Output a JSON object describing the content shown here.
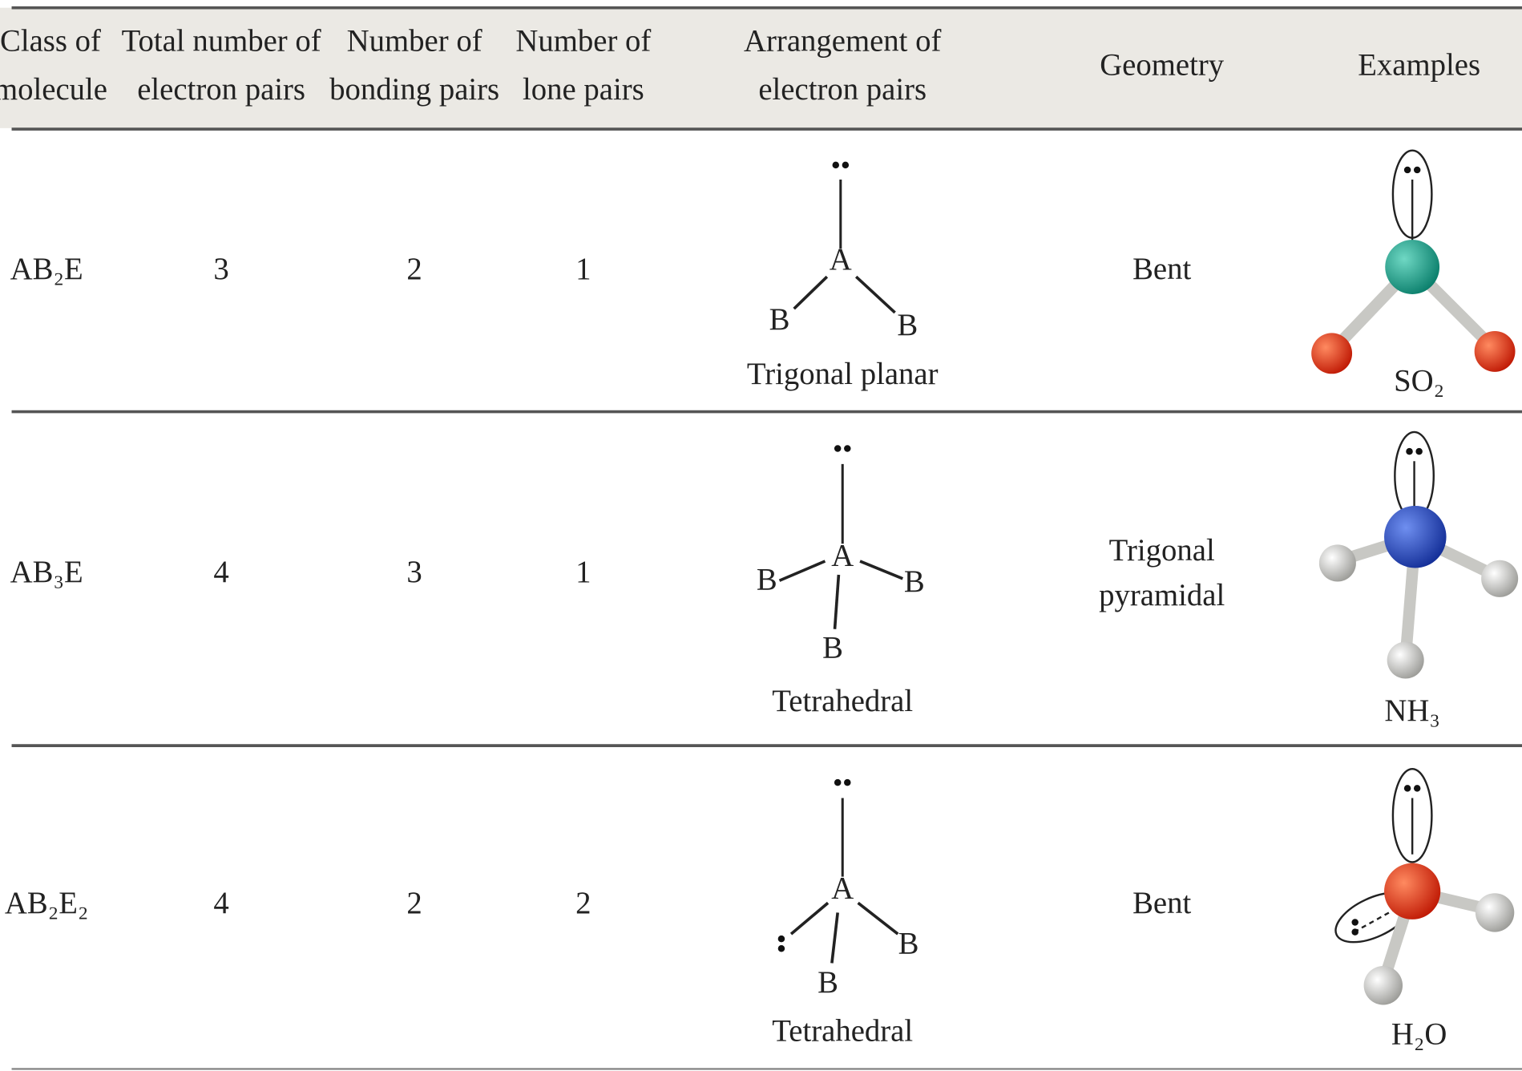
{
  "header": {
    "columns": [
      [
        "Class of",
        "molecule"
      ],
      [
        "Total number of",
        "electron pairs"
      ],
      [
        "Number of",
        "bonding pairs"
      ],
      [
        "Number of",
        "lone pairs"
      ],
      [
        "Arrangement of",
        "electron pairs"
      ],
      [
        "Geometry"
      ],
      [
        "Examples"
      ]
    ]
  },
  "rows": [
    {
      "class": "AB₂E",
      "total": 3,
      "bonding": 2,
      "lone": 1,
      "arrangement": {
        "center": "A",
        "atoms": [
          "B",
          "B"
        ],
        "name": "Trigonal planar"
      },
      "geometry": [
        "Bent"
      ],
      "example": "SO₂"
    },
    {
      "class": "AB₃E",
      "total": 4,
      "bonding": 3,
      "lone": 1,
      "arrangement": {
        "center": "A",
        "atoms": [
          "B",
          "B",
          "B"
        ],
        "name": "Tetrahedral"
      },
      "geometry": [
        "Trigonal",
        "pyramidal"
      ],
      "example": "NH₃"
    },
    {
      "class": "AB₂E₂",
      "total": 4,
      "bonding": 2,
      "lone": 2,
      "arrangement": {
        "center": "A",
        "atoms": [
          "B",
          "B"
        ],
        "name": "Tetrahedral"
      },
      "geometry": [
        "Bent"
      ],
      "example": "H₂O"
    }
  ]
}
